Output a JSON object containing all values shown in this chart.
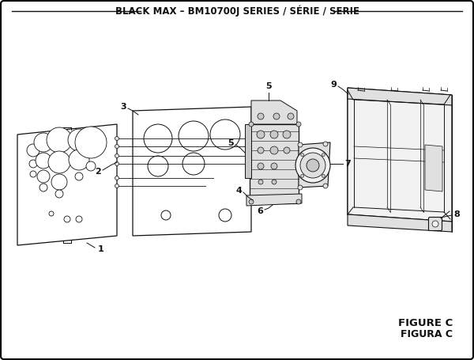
{
  "title": "BLACK MAX – BM10700J SERIES / SÉRIE / SERIE",
  "figure_label": "FIGURE C",
  "figura_label": "FIGURA C",
  "bg_color": "#ffffff",
  "border_color": "#000000",
  "line_color": "#111111",
  "title_fontsize": 8.5,
  "label_fontsize": 8,
  "figure_label_fontsize": 9.5
}
